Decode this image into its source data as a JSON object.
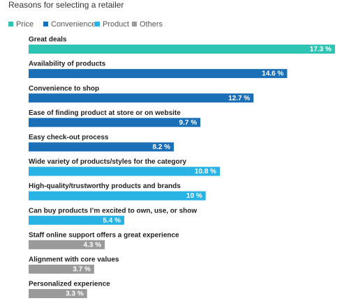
{
  "chart_data": {
    "type": "bar",
    "orientation": "horizontal",
    "title": "Reasons for selecting a retailer",
    "categories": [
      "Great deals",
      "Availability of products",
      "Convenience to shop",
      "Ease of finding product at store or on website",
      "Easy check-out process",
      "Wide variety of products/styles for the category",
      "High-quality/trustworthy products and brands",
      "Can buy products I’m excited to own, use, or show",
      "Staff online support offers a great experience",
      "Alignment with core values",
      "Personalized experience"
    ],
    "series": [
      {
        "name": "Price",
        "color": "#2ec4b4",
        "values": [
          17.3,
          null,
          null,
          null,
          null,
          null,
          null,
          null,
          null,
          null,
          null
        ],
        "value_labels": [
          "17.3 %",
          null,
          null,
          null,
          null,
          null,
          null,
          null,
          null,
          null,
          null
        ]
      },
      {
        "name": "Convenience",
        "color": "#1b6fb6",
        "values": [
          null,
          14.6,
          12.7,
          9.7,
          8.2,
          null,
          null,
          null,
          null,
          null,
          null
        ],
        "value_labels": [
          null,
          "14.6 %",
          "12.7 %",
          "9.7 %",
          "8.2 %",
          null,
          null,
          null,
          null,
          null,
          null
        ]
      },
      {
        "name": "Product",
        "color": "#28b3e4",
        "values": [
          null,
          null,
          null,
          null,
          null,
          10.8,
          10,
          5.4,
          null,
          null,
          null
        ],
        "value_labels": [
          null,
          null,
          null,
          null,
          null,
          "10.8 %",
          "10 %",
          "5.4 %",
          null,
          null,
          null
        ]
      },
      {
        "name": "Others",
        "color": "#9a9a9a",
        "values": [
          null,
          null,
          null,
          null,
          null,
          null,
          null,
          null,
          4.3,
          3.7,
          3.3
        ],
        "value_labels": [
          null,
          null,
          null,
          null,
          null,
          null,
          null,
          null,
          "4.3 %",
          "3.7 %",
          "3.3 %"
        ]
      }
    ],
    "xlim": [
      0,
      17.5
    ]
  }
}
